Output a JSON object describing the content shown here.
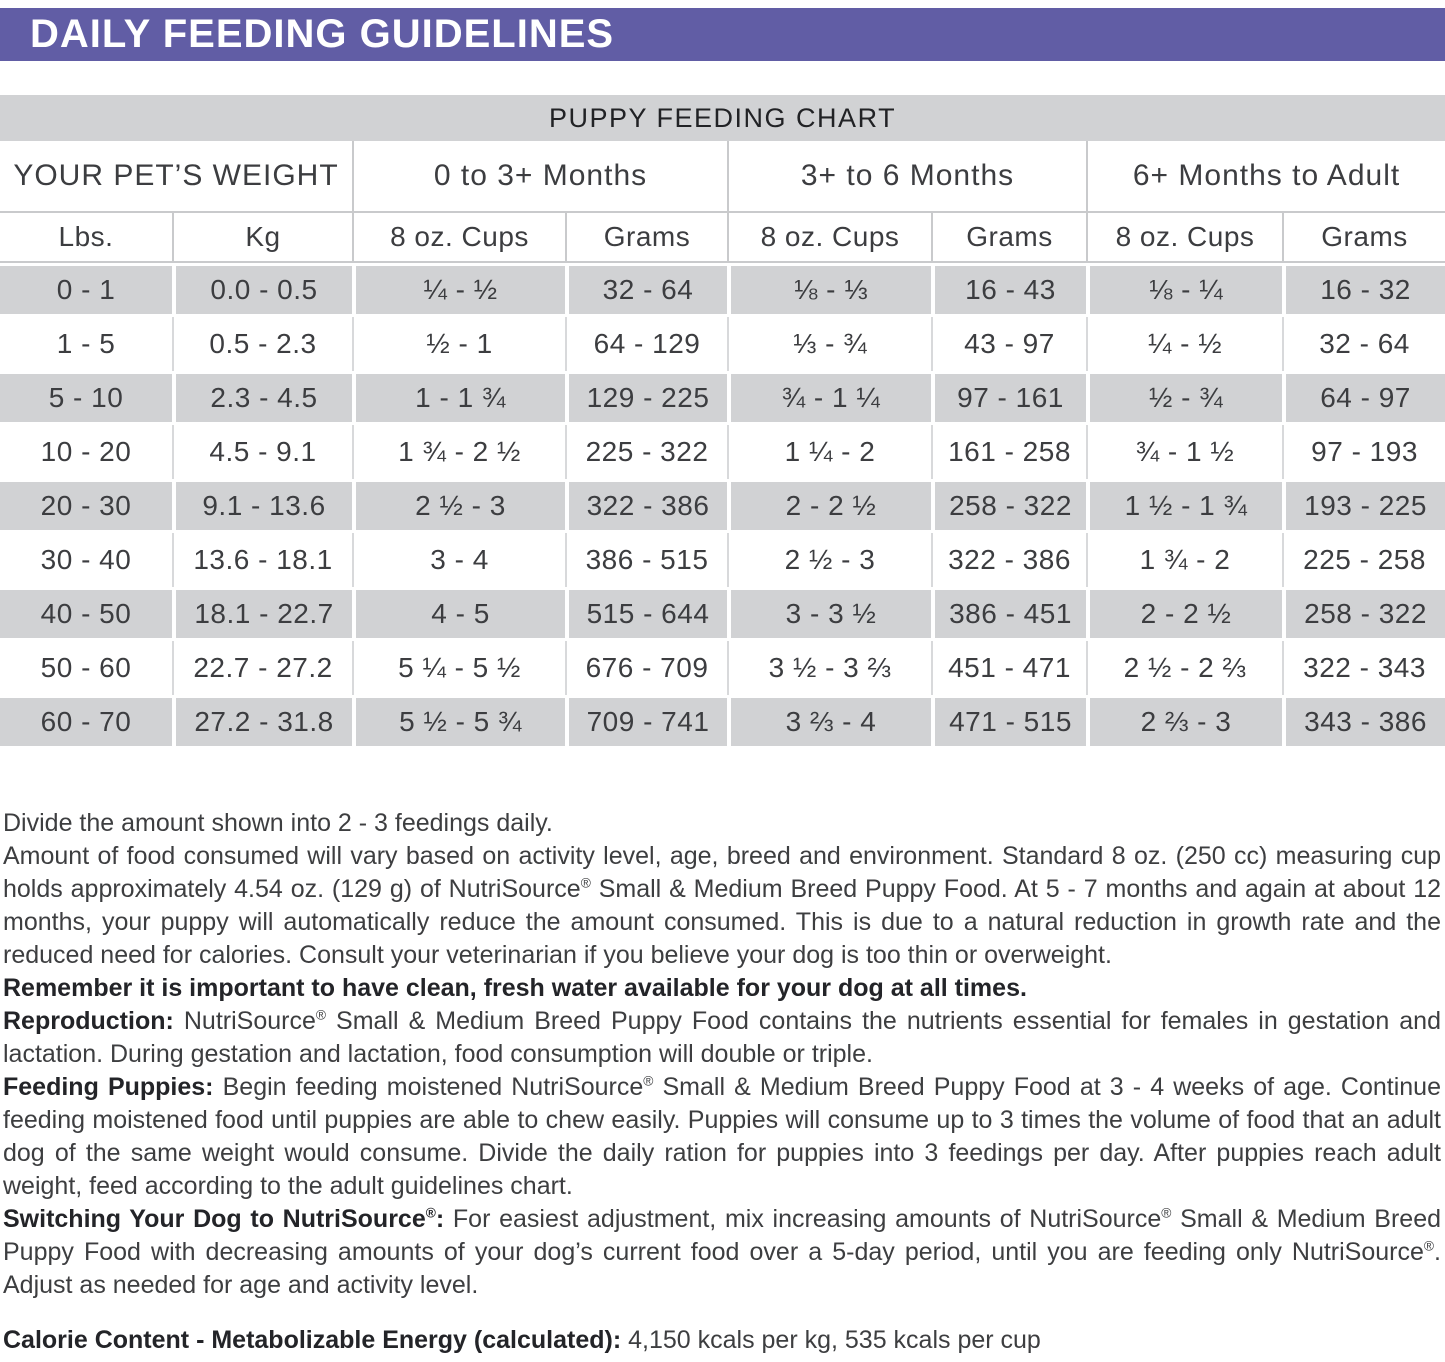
{
  "banner": {
    "title": "DAILY FEEDING GUIDELINES",
    "bg_color": "#615da5"
  },
  "table": {
    "title": "PUPPY FEEDING CHART",
    "weight_header": "YOUR PET’S WEIGHT",
    "groups": [
      "0 to 3+ Months",
      "3+ to 6 Months",
      "6+ Months to Adult"
    ],
    "subheaders": [
      "Lbs.",
      "Kg",
      "8 oz. Cups",
      "Grams",
      "8 oz. Cups",
      "Grams",
      "8 oz. Cups",
      "Grams"
    ],
    "rows": [
      [
        "0 - 1",
        "0.0 - 0.5",
        "¼ - ½",
        "32 - 64",
        "⅛ - ⅓",
        "16 - 43",
        "⅛ - ¼",
        "16 - 32"
      ],
      [
        "1 - 5",
        "0.5 - 2.3",
        "½ - 1",
        "64 - 129",
        "⅓ - ¾",
        "43 - 97",
        "¼ - ½",
        "32 - 64"
      ],
      [
        "5 - 10",
        "2.3 - 4.5",
        "1 - 1 ¾",
        "129 - 225",
        "¾ - 1 ¼",
        "97 - 161",
        "½ - ¾",
        "64 - 97"
      ],
      [
        "10 - 20",
        "4.5 - 9.1",
        "1 ¾ - 2 ½",
        "225 - 322",
        "1 ¼ - 2",
        "161 - 258",
        "¾ - 1 ½",
        "97 - 193"
      ],
      [
        "20 - 30",
        "9.1 - 13.6",
        "2 ½ - 3",
        "322 - 386",
        "2 - 2 ½",
        "258 - 322",
        "1 ½ - 1 ¾",
        "193 - 225"
      ],
      [
        "30 - 40",
        "13.6 - 18.1",
        "3 - 4",
        "386 - 515",
        "2 ½ - 3",
        "322 - 386",
        "1 ¾ - 2",
        "225 - 258"
      ],
      [
        "40 - 50",
        "18.1 - 22.7",
        "4 - 5",
        "515 - 644",
        "3 - 3 ½",
        "386 - 451",
        "2 - 2 ½",
        "258 - 322"
      ],
      [
        "50 - 60",
        "22.7 - 27.2",
        "5 ¼ - 5 ½",
        "676 - 709",
        "3 ½ - 3 ⅔",
        "451 - 471",
        "2 ½ - 2 ⅔",
        "322 - 343"
      ],
      [
        "60 - 70",
        "27.2 - 31.8",
        "5 ½ - 5 ¾",
        "709 - 741",
        "3 ⅔ - 4",
        "471 - 515",
        "2 ⅔ - 3",
        "343 - 386"
      ]
    ],
    "stripe_color": "#d1d2d4"
  },
  "notes": [
    {
      "bold": "",
      "text": "Divide the amount shown into 2 - 3 feedings daily."
    },
    {
      "bold": "",
      "text": "Amount of food consumed will vary based on activity level, age, breed and environment. Standard 8 oz. (250 cc) measuring cup holds approximately 4.54 oz. (129 g) of NutriSource® Small & Medium Breed Puppy Food. At 5 - 7 months and again at about 12 months, your puppy will automatically reduce the amount consumed. This is due to a natural reduction in growth rate and the reduced need for calories. Consult your veterinarian if you believe your dog is too thin or overweight."
    },
    {
      "bold": "Remember it is important to have clean, fresh water available for your dog at all times.",
      "text": ""
    },
    {
      "bold": "Reproduction:",
      "text": " NutriSource® Small & Medium Breed Puppy Food contains the nutrients essential for females in gestation and lactation. During gestation and lactation, food consumption will double or triple."
    },
    {
      "bold": "Feeding Puppies:",
      "text": " Begin feeding moistened NutriSource® Small & Medium Breed Puppy Food at 3 - 4 weeks of age. Continue feeding moistened food until puppies are able to chew easily. Puppies will consume up to 3 times the volume of food that an adult dog of the same weight would consume. Divide the daily ration for puppies into 3 feedings per day. After puppies reach adult weight, feed according to the adult guidelines chart."
    },
    {
      "bold": "Switching Your Dog to NutriSource®:",
      "text": " For easiest adjustment, mix increasing amounts of NutriSource® Small & Medium Breed Puppy Food with decreasing amounts of your dog’s current food over a 5-day period, until you are feeding only NutriSource®. Adjust as needed for age and activity level."
    }
  ],
  "calorie": {
    "bold": "Calorie Content - Metabolizable Energy (calculated):",
    "text": " 4,150 kcals per kg, 535 kcals per cup"
  }
}
